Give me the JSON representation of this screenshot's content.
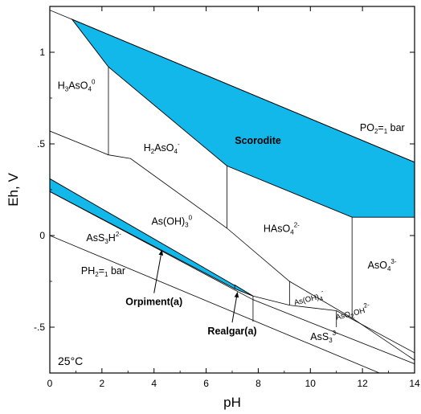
{
  "chart_data": {
    "type": "area",
    "title": "",
    "xlabel": "pH",
    "ylabel": "Eh, V",
    "xlim": [
      0,
      14
    ],
    "ylim": [
      -0.75,
      1.25
    ],
    "xticks": [
      0,
      2,
      4,
      6,
      8,
      10,
      12,
      14
    ],
    "xtick_labels": [
      "0",
      "2",
      "4",
      "6",
      "8",
      "10",
      "12",
      "14"
    ],
    "yticks": [
      1.0,
      0.5,
      0.0,
      -0.5
    ],
    "ytick_labels": [
      "1",
      ".5",
      "0",
      "-.5"
    ],
    "grid": false,
    "colors": {
      "stability_field": "#12b8ea",
      "line": "#000000"
    },
    "annotation": "25°C",
    "boundary_lines": [
      {
        "name": "PO2=1 bar",
        "points": [
          [
            0,
            1.23
          ],
          [
            14,
            0.4
          ]
        ]
      },
      {
        "name": "PH2=1 bar",
        "points": [
          [
            0,
            0.0
          ],
          [
            14,
            -0.83
          ]
        ]
      },
      {
        "name": "H3AsO4-H2AsO4 boundary",
        "points": [
          [
            2.25,
            0.92
          ],
          [
            2.25,
            0.44
          ]
        ]
      },
      {
        "name": "H2AsO4-HAsO4 boundary",
        "points": [
          [
            6.8,
            0.38
          ],
          [
            6.8,
            0.04
          ]
        ]
      },
      {
        "name": "HAsO4-AsO4 boundary",
        "points": [
          [
            11.6,
            0.1
          ],
          [
            11.6,
            -0.45
          ]
        ]
      },
      {
        "name": "arsenate-arsenite boundary",
        "points": [
          [
            0,
            0.57
          ],
          [
            2.25,
            0.44
          ],
          [
            3.1,
            0.42
          ],
          [
            6.8,
            0.04
          ],
          [
            9.2,
            -0.25
          ],
          [
            11.6,
            -0.45
          ],
          [
            14,
            -0.68
          ]
        ]
      },
      {
        "name": "As(OH)3-As(OH)4 boundary",
        "points": [
          [
            9.2,
            -0.25
          ],
          [
            9.2,
            -0.38
          ]
        ]
      },
      {
        "name": "As(OH)4-AsO2OH boundary",
        "points": [
          [
            11.0,
            -0.41
          ],
          [
            11.0,
            -0.5
          ]
        ]
      },
      {
        "name": "realgar-arsenite boundary",
        "points": [
          [
            7.8,
            -0.33
          ],
          [
            7.8,
            -0.47
          ]
        ]
      },
      {
        "name": "AsS3H-AsS3 lower boundary",
        "points": [
          [
            0,
            0.24
          ],
          [
            7.8,
            -0.35
          ],
          [
            14,
            -0.7
          ]
        ]
      },
      {
        "name": "thioarsenite upper boundary",
        "points": [
          [
            7.8,
            -0.33
          ],
          [
            9.2,
            -0.38
          ],
          [
            11.0,
            -0.41
          ],
          [
            14,
            -0.64
          ]
        ]
      }
    ],
    "stability_fields": [
      {
        "name": "Scorodite",
        "polygon": [
          [
            0.85,
            1.18
          ],
          [
            2.25,
            0.92
          ],
          [
            6.8,
            0.38
          ],
          [
            11.6,
            0.1
          ],
          [
            14,
            0.1
          ],
          [
            14,
            0.4
          ]
        ]
      },
      {
        "name": "Orpiment(a)",
        "polygon": [
          [
            0,
            0.31
          ],
          [
            7.8,
            -0.33
          ],
          [
            7.1,
            -0.29
          ],
          [
            0,
            0.24
          ]
        ]
      },
      {
        "name": "Realgar(a)",
        "polygon": [
          [
            7.1,
            -0.29
          ],
          [
            7.8,
            -0.33
          ],
          [
            7.1,
            -0.27
          ]
        ]
      }
    ],
    "region_labels": [
      {
        "text": "H3AsO4",
        "charge": "0",
        "x": 0.3,
        "y": 0.8
      },
      {
        "text": "H2AsO4",
        "charge": "-",
        "x": 3.6,
        "y": 0.46
      },
      {
        "text": "Scorodite",
        "charge": "",
        "x": 7.1,
        "y": 0.5
      },
      {
        "text": "PO2=1 bar",
        "charge": "",
        "x": 11.9,
        "y": 0.57
      },
      {
        "text": "HAsO4",
        "charge": "2-",
        "x": 8.2,
        "y": 0.02
      },
      {
        "text": "AsO4",
        "charge": "3-",
        "x": 12.2,
        "y": -0.18
      },
      {
        "text": "As(OH)3",
        "charge": "0",
        "x": 3.9,
        "y": 0.06
      },
      {
        "text": "AsS3H",
        "charge": "2-",
        "x": 1.4,
        "y": -0.03
      },
      {
        "text": "PH2=1 bar",
        "charge": "",
        "x": 1.2,
        "y": -0.21
      },
      {
        "text": "As(OH)4",
        "charge": "-",
        "x": 9.4,
        "y": -0.38
      },
      {
        "text": "AsO2OH",
        "charge": "2-",
        "x": 11.0,
        "y": -0.46
      },
      {
        "text": "AsS3",
        "charge": "3-",
        "x": 10.0,
        "y": -0.57
      }
    ],
    "arrow_labels": [
      {
        "text": "Orpiment(a)",
        "label_at": [
          4.0,
          -0.38
        ],
        "arrow_to": [
          4.3,
          -0.08
        ]
      },
      {
        "text": "Realgar(a)",
        "label_at": [
          7.0,
          -0.54
        ],
        "arrow_to": [
          7.2,
          -0.31
        ]
      }
    ]
  }
}
